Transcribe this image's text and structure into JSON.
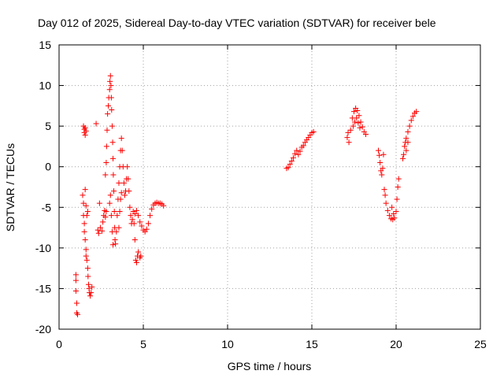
{
  "chart_data": {
    "type": "scatter",
    "title": "Day 012 of 2025, Sidereal Day-to-day VTEC variation (SDTVAR) for receiver bele",
    "xlabel": "GPS time / hours",
    "ylabel": "SDTVAR / TECUs",
    "xlim": [
      0,
      25
    ],
    "ylim": [
      -20,
      15
    ],
    "xticks": [
      0,
      5,
      10,
      15,
      20,
      25
    ],
    "yticks": [
      -20,
      -15,
      -10,
      -5,
      0,
      5,
      10,
      15
    ],
    "grid": true,
    "marker": "+",
    "marker_color": "#ff0000",
    "series": [
      {
        "name": "SDTVAR",
        "points": [
          [
            1.0,
            -13.3
          ],
          [
            1.0,
            -14.0
          ],
          [
            1.0,
            -15.3
          ],
          [
            1.05,
            -16.8
          ],
          [
            1.05,
            -18.0
          ],
          [
            1.1,
            -18.2
          ],
          [
            1.4,
            -3.5
          ],
          [
            1.45,
            -4.5
          ],
          [
            1.45,
            -6.0
          ],
          [
            1.5,
            -7.0
          ],
          [
            1.5,
            -8.0
          ],
          [
            1.55,
            -9.0
          ],
          [
            1.6,
            -10.2
          ],
          [
            1.6,
            -11.0
          ],
          [
            1.65,
            -11.5
          ],
          [
            1.7,
            -12.5
          ],
          [
            1.72,
            -13.5
          ],
          [
            1.75,
            -14.5
          ],
          [
            1.78,
            -15.0
          ],
          [
            1.8,
            -15.5
          ],
          [
            1.85,
            -15.9
          ],
          [
            1.9,
            -15.5
          ],
          [
            1.95,
            -14.8
          ],
          [
            1.45,
            5.0
          ],
          [
            1.5,
            4.6
          ],
          [
            1.5,
            4.2
          ],
          [
            1.55,
            3.9
          ],
          [
            1.55,
            4.8
          ],
          [
            1.6,
            4.4
          ],
          [
            1.55,
            -2.8
          ],
          [
            1.6,
            -4.8
          ],
          [
            1.65,
            -6.0
          ],
          [
            1.7,
            -5.5
          ],
          [
            2.2,
            5.3
          ],
          [
            2.3,
            -7.8
          ],
          [
            2.35,
            -8.2
          ],
          [
            2.45,
            -7.5
          ],
          [
            2.55,
            -7.9
          ],
          [
            2.6,
            -6.8
          ],
          [
            2.65,
            -6.0
          ],
          [
            2.7,
            -5.4
          ],
          [
            2.75,
            -6.2
          ],
          [
            2.4,
            -4.5
          ],
          [
            2.8,
            -5.5
          ],
          [
            2.75,
            -1.0
          ],
          [
            2.8,
            0.5
          ],
          [
            2.82,
            2.5
          ],
          [
            2.85,
            4.5
          ],
          [
            2.88,
            6.5
          ],
          [
            2.92,
            7.5
          ],
          [
            2.95,
            8.5
          ],
          [
            3.0,
            9.5
          ],
          [
            3.02,
            10.5
          ],
          [
            3.05,
            11.2
          ],
          [
            3.08,
            10.0
          ],
          [
            3.1,
            8.5
          ],
          [
            3.12,
            7.0
          ],
          [
            3.15,
            5.0
          ],
          [
            3.18,
            3.0
          ],
          [
            3.2,
            1.0
          ],
          [
            3.22,
            -1.0
          ],
          [
            3.25,
            -3.0
          ],
          [
            3.28,
            -5.5
          ],
          [
            3.3,
            -7.5
          ],
          [
            3.32,
            -9.0
          ],
          [
            3.35,
            -9.5
          ],
          [
            3.4,
            -8.0
          ],
          [
            3.45,
            -6.0
          ],
          [
            3.5,
            -4.0
          ],
          [
            3.55,
            -2.0
          ],
          [
            3.6,
            0.0
          ],
          [
            3.65,
            2.0
          ],
          [
            3.7,
            3.5
          ],
          [
            3.75,
            2.0
          ],
          [
            3.8,
            0.0
          ],
          [
            3.85,
            -2.0
          ],
          [
            3.9,
            -3.5
          ],
          [
            3.95,
            -3.0
          ],
          [
            4.0,
            -1.5
          ],
          [
            4.05,
            0.0
          ],
          [
            4.1,
            -1.5
          ],
          [
            4.15,
            -3.0
          ],
          [
            4.2,
            -5.0
          ],
          [
            4.25,
            -6.0
          ],
          [
            4.3,
            -7.0
          ],
          [
            4.35,
            -6.5
          ],
          [
            4.4,
            -5.5
          ],
          [
            4.45,
            -7.0
          ],
          [
            4.5,
            -9.0
          ],
          [
            4.55,
            -11.5
          ],
          [
            4.6,
            -11.8
          ],
          [
            4.65,
            -11.0
          ],
          [
            4.7,
            -10.5
          ],
          [
            4.8,
            -11.2
          ],
          [
            4.85,
            -11.0
          ],
          [
            3.0,
            -4.5
          ],
          [
            3.05,
            -3.5
          ],
          [
            3.1,
            -6.0
          ],
          [
            3.15,
            -8.0
          ],
          [
            3.2,
            -9.6
          ],
          [
            3.55,
            -7.5
          ],
          [
            3.6,
            -5.5
          ],
          [
            3.65,
            -4.0
          ],
          [
            3.7,
            -3.2
          ],
          [
            4.5,
            -5.8
          ],
          [
            4.6,
            -5.4
          ],
          [
            4.7,
            -6.0
          ],
          [
            4.8,
            -6.8
          ],
          [
            4.9,
            -7.3
          ],
          [
            5.0,
            -7.8
          ],
          [
            5.1,
            -8.0
          ],
          [
            5.2,
            -7.7
          ],
          [
            5.3,
            -7.0
          ],
          [
            5.4,
            -6.0
          ],
          [
            5.5,
            -5.2
          ],
          [
            5.6,
            -4.7
          ],
          [
            5.7,
            -4.5
          ],
          [
            5.8,
            -4.4
          ],
          [
            5.9,
            -4.5
          ],
          [
            6.0,
            -4.5
          ],
          [
            6.1,
            -4.6
          ],
          [
            6.2,
            -4.8
          ],
          [
            13.5,
            -0.2
          ],
          [
            13.6,
            -0.1
          ],
          [
            13.7,
            0.3
          ],
          [
            13.8,
            0.7
          ],
          [
            13.9,
            1.1
          ],
          [
            14.0,
            1.6
          ],
          [
            14.1,
            2.0
          ],
          [
            14.2,
            1.5
          ],
          [
            14.3,
            1.9
          ],
          [
            14.4,
            2.4
          ],
          [
            14.5,
            2.6
          ],
          [
            14.6,
            3.0
          ],
          [
            14.7,
            3.3
          ],
          [
            14.8,
            3.6
          ],
          [
            14.9,
            3.9
          ],
          [
            15.0,
            4.2
          ],
          [
            15.1,
            4.3
          ],
          [
            17.1,
            3.6
          ],
          [
            17.15,
            4.2
          ],
          [
            17.2,
            3.0
          ],
          [
            17.3,
            4.5
          ],
          [
            17.4,
            6.0
          ],
          [
            17.5,
            6.8
          ],
          [
            17.6,
            7.2
          ],
          [
            17.7,
            6.9
          ],
          [
            17.8,
            6.3
          ],
          [
            17.9,
            5.5
          ],
          [
            18.0,
            4.9
          ],
          [
            18.1,
            4.3
          ],
          [
            18.2,
            4.0
          ],
          [
            17.45,
            5.0
          ],
          [
            17.55,
            5.5
          ],
          [
            17.65,
            6.0
          ],
          [
            17.75,
            5.4
          ],
          [
            17.85,
            4.8
          ],
          [
            18.95,
            2.0
          ],
          [
            19.0,
            1.4
          ],
          [
            19.05,
            0.5
          ],
          [
            19.1,
            -0.5
          ],
          [
            19.15,
            -1.0
          ],
          [
            19.2,
            -0.2
          ],
          [
            19.25,
            1.5
          ],
          [
            19.3,
            -2.8
          ],
          [
            19.35,
            -3.5
          ],
          [
            19.4,
            -4.5
          ],
          [
            19.5,
            -5.4
          ],
          [
            19.6,
            -6.0
          ],
          [
            19.7,
            -6.4
          ],
          [
            19.8,
            -6.5
          ],
          [
            19.9,
            -6.3
          ],
          [
            20.0,
            -5.5
          ],
          [
            20.05,
            -4.0
          ],
          [
            20.1,
            -2.5
          ],
          [
            20.15,
            -1.5
          ],
          [
            19.75,
            -5.0
          ],
          [
            19.85,
            -5.8
          ],
          [
            20.4,
            1.0
          ],
          [
            20.45,
            1.5
          ],
          [
            20.5,
            2.5
          ],
          [
            20.55,
            3.0
          ],
          [
            20.6,
            3.5
          ],
          [
            20.7,
            4.3
          ],
          [
            20.8,
            5.0
          ],
          [
            20.9,
            5.7
          ],
          [
            21.0,
            6.2
          ],
          [
            21.1,
            6.6
          ],
          [
            21.2,
            6.8
          ],
          [
            20.6,
            2.0
          ],
          [
            20.7,
            3.0
          ]
        ]
      }
    ]
  }
}
